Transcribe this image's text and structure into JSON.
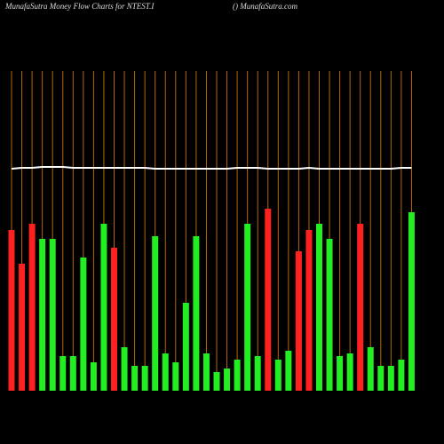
{
  "chart_data": {
    "type": "bar",
    "title": "MunafaSutra  Money Flow  Charts for NTEST.I",
    "subtitle": "() MunafaSutra.com",
    "categories": [
      null,
      null,
      null,
      null,
      null,
      null,
      null,
      null,
      null,
      null,
      null,
      null,
      null,
      null,
      null,
      null,
      null,
      null,
      null,
      null,
      null,
      null,
      null,
      null,
      null,
      null,
      null,
      null,
      null,
      null,
      null,
      null,
      null,
      null,
      null,
      null,
      null,
      null,
      null,
      null
    ],
    "values": [
      181,
      143,
      188,
      171,
      171,
      39,
      39,
      150,
      32,
      188,
      161,
      49,
      28,
      28,
      174,
      42,
      32,
      99,
      174,
      42,
      21,
      25,
      35,
      188,
      39,
      205,
      35,
      45,
      157,
      181,
      188,
      171,
      39,
      42,
      188,
      49,
      28,
      28,
      35,
      201
    ],
    "colors": [
      "#ff2020",
      "#ff2020",
      "#ff2020",
      "#22ee22",
      "#22ee22",
      "#22ee22",
      "#22ee22",
      "#22ee22",
      "#22ee22",
      "#22ee22",
      "#ff2020",
      "#22ee22",
      "#22ee22",
      "#22ee22",
      "#22ee22",
      "#22ee22",
      "#22ee22",
      "#22ee22",
      "#22ee22",
      "#22ee22",
      "#22ee22",
      "#22ee22",
      "#22ee22",
      "#22ee22",
      "#22ee22",
      "#ff2020",
      "#22ee22",
      "#22ee22",
      "#ff2020",
      "#ff2020",
      "#22ee22",
      "#22ee22",
      "#22ee22",
      "#22ee22",
      "#ff2020",
      "#22ee22",
      "#22ee22",
      "#22ee22",
      "#22ee22",
      "#22ee22"
    ],
    "line": {
      "color": "#ffffff",
      "values": [
        250,
        251,
        251,
        252,
        252,
        252,
        251,
        251,
        251,
        251,
        251,
        251,
        251,
        251,
        250,
        250,
        250,
        250,
        250,
        250,
        250,
        250,
        251,
        251,
        251,
        250,
        250,
        250,
        250,
        251,
        250,
        250,
        250,
        250,
        250,
        250,
        250,
        250,
        251,
        251
      ]
    },
    "grid_color": "#b8660b",
    "ylim": [
      0,
      360
    ]
  }
}
